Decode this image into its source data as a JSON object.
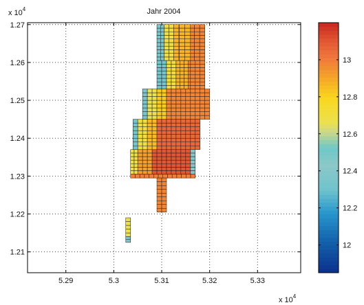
{
  "chart_data": {
    "type": "heatmap",
    "title": "Jahr 2004",
    "x_multiplier_label": "x 10",
    "x_multiplier_exponent": "4",
    "y_multiplier_label": "x 10",
    "y_multiplier_exponent": "4",
    "xlim": [
      5.282,
      5.339
    ],
    "ylim": [
      1.2045,
      1.2705
    ],
    "x_ticks": [
      5.29,
      5.3,
      5.31,
      5.32,
      5.33
    ],
    "x_tick_labels": [
      "5.29",
      "5.3",
      "5.31",
      "5.32",
      "5.33"
    ],
    "y_ticks": [
      1.21,
      1.22,
      1.23,
      1.24,
      1.25,
      1.26,
      1.27
    ],
    "y_tick_labels": [
      "1.21",
      "1.22",
      "1.23",
      "1.24",
      "1.25",
      "1.26",
      "1.27"
    ],
    "grid": true,
    "colorbar": {
      "clim": [
        11.85,
        13.2
      ],
      "ticks": [
        12.0,
        12.2,
        12.4,
        12.6,
        12.8,
        13.0
      ],
      "tick_labels": [
        "12",
        "12.2",
        "12.4",
        "12.6",
        "12.8",
        "13"
      ]
    },
    "cell_size": 0.001,
    "regions": [
      {
        "x_range": [
          5.309,
          5.3105
        ],
        "y_range": [
          1.2605,
          1.27
        ],
        "value": 12.35
      },
      {
        "x_range": [
          5.3105,
          5.3125
        ],
        "y_range": [
          1.2605,
          1.27
        ],
        "value": 12.7
      },
      {
        "x_range": [
          5.3125,
          5.319
        ],
        "y_range": [
          1.2605,
          1.27
        ],
        "value": 12.98
      },
      {
        "x_range": [
          5.3125,
          5.316
        ],
        "y_range": [
          1.2605,
          1.27
        ],
        "value": 12.87
      },
      {
        "x_range": [
          5.309,
          5.311
        ],
        "y_range": [
          1.253,
          1.2605
        ],
        "value": 12.32
      },
      {
        "x_range": [
          5.311,
          5.313
        ],
        "y_range": [
          1.253,
          1.2605
        ],
        "value": 12.72
      },
      {
        "x_range": [
          5.313,
          5.319
        ],
        "y_range": [
          1.253,
          1.2605
        ],
        "value": 12.98
      },
      {
        "x_range": [
          5.313,
          5.3155
        ],
        "y_range": [
          1.253,
          1.2605
        ],
        "value": 12.88
      },
      {
        "x_range": [
          5.306,
          5.307
        ],
        "y_range": [
          1.245,
          1.253
        ],
        "value": 12.35
      },
      {
        "x_range": [
          5.307,
          5.309
        ],
        "y_range": [
          1.245,
          1.253
        ],
        "value": 12.66
      },
      {
        "x_range": [
          5.309,
          5.311
        ],
        "y_range": [
          1.245,
          1.253
        ],
        "value": 12.82
      },
      {
        "x_range": [
          5.311,
          5.32
        ],
        "y_range": [
          1.245,
          1.253
        ],
        "value": 12.98
      },
      {
        "x_range": [
          5.304,
          5.305
        ],
        "y_range": [
          1.237,
          1.245
        ],
        "value": 12.32
      },
      {
        "x_range": [
          5.305,
          5.307
        ],
        "y_range": [
          1.237,
          1.245
        ],
        "value": 12.7
      },
      {
        "x_range": [
          5.307,
          5.309
        ],
        "y_range": [
          1.237,
          1.245
        ],
        "value": 12.86
      },
      {
        "x_range": [
          5.309,
          5.318
        ],
        "y_range": [
          1.237,
          1.245
        ],
        "value": 13.06
      },
      {
        "x_range": [
          5.3035,
          5.305
        ],
        "y_range": [
          1.2305,
          1.237
        ],
        "value": 12.68
      },
      {
        "x_range": [
          5.305,
          5.308
        ],
        "y_range": [
          1.2305,
          1.237
        ],
        "value": 12.92
      },
      {
        "x_range": [
          5.308,
          5.316
        ],
        "y_range": [
          1.2305,
          1.237
        ],
        "value": 13.1
      },
      {
        "x_range": [
          5.316,
          5.317
        ],
        "y_range": [
          1.2305,
          1.237
        ],
        "value": 12.4
      },
      {
        "x_range": [
          5.3035,
          5.317
        ],
        "y_range": [
          1.2295,
          1.2305
        ],
        "value": 13.0
      },
      {
        "x_range": [
          5.309,
          5.311
        ],
        "y_range": [
          1.2205,
          1.2295
        ],
        "value": 12.98
      },
      {
        "x_range": [
          5.3025,
          5.3035
        ],
        "y_range": [
          1.214,
          1.219
        ],
        "value": 12.68
      },
      {
        "x_range": [
          5.3025,
          5.3035
        ],
        "y_range": [
          1.2125,
          1.214
        ],
        "value": 12.35
      }
    ]
  }
}
